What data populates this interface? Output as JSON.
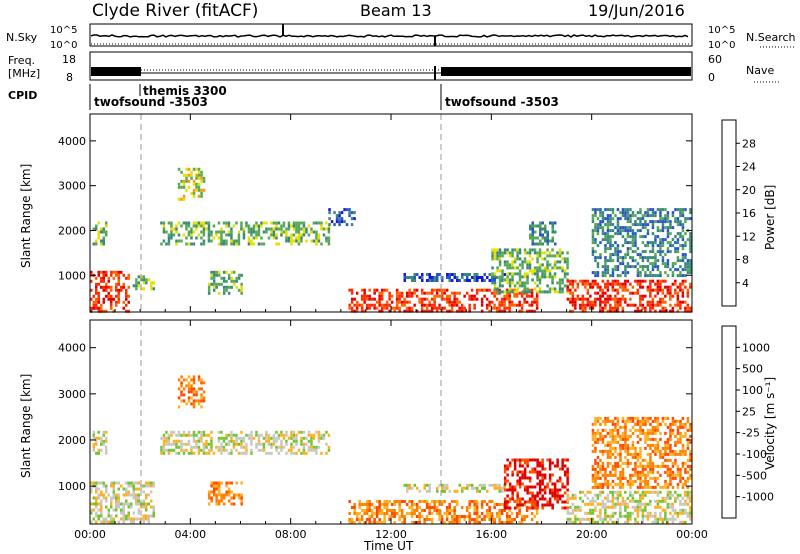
{
  "header": {
    "title": "Clyde River (fitACF)",
    "beam": "Beam 13",
    "date": "19/Jun/2016"
  },
  "top_panels": {
    "nsky_label": "N.Sky",
    "nsearch_label": "N.Search",
    "ns_ticks_left": [
      "10^5",
      "10^0"
    ],
    "ns_ticks_right": [
      "10^5",
      "10^0"
    ],
    "freq_label_1": "Freq.",
    "freq_label_2": "[MHz]",
    "freq_ticks": [
      "18",
      "8"
    ],
    "nave_label": "Nave",
    "nave_ticks": [
      "60",
      "0"
    ],
    "cpid_label": "CPID",
    "cpid_segments": [
      {
        "name": "twofsound -3503",
        "start_h": 0.0,
        "end_h": 2.0
      },
      {
        "name": "themis 3300",
        "start_h": 2.0,
        "end_h": 14.0
      },
      {
        "name": "twofsound -3503",
        "start_h": 14.0,
        "end_h": 24.0
      }
    ]
  },
  "colors": {
    "power_scale": [
      "#1616e0",
      "#2b55c8",
      "#3a8a7a",
      "#57a857",
      "#e6e000",
      "#ff9900",
      "#ff6200",
      "#ff2a00",
      "#e00000"
    ],
    "velocity_scale": [
      "#2233cc",
      "#2e7a86",
      "#2f9a3a",
      "#73c435",
      "#c8c8c0",
      "#ffb020",
      "#ff8000",
      "#ff4a00",
      "#e00000"
    ],
    "ground_scatter": "#c0c0b8"
  },
  "chart_data": [
    {
      "type": "heatmap",
      "name": "power",
      "ylabel": "Slant Range [km]",
      "xlabel": "",
      "x_ticks": [
        "00:00",
        "04:00",
        "08:00",
        "12:00",
        "16:00",
        "20:00",
        "00:00"
      ],
      "y_ticks": [
        "1000",
        "2000",
        "3000",
        "4000"
      ],
      "xlim": [
        0,
        24
      ],
      "ylim": [
        180,
        4600
      ],
      "colorbar_label": "Power [dB]",
      "colorbar_ticks": [
        "28",
        "24",
        "20",
        "16",
        "12",
        "8",
        "4"
      ],
      "regions": [
        {
          "t0": 0.0,
          "t1": 1.5,
          "r0": 200,
          "r1": 1100,
          "level": 7
        },
        {
          "t0": 0.1,
          "t1": 0.6,
          "r0": 1700,
          "r1": 2200,
          "level": 3
        },
        {
          "t0": 1.7,
          "t1": 2.5,
          "r0": 700,
          "r1": 1000,
          "level": 3
        },
        {
          "t0": 2.8,
          "t1": 9.5,
          "r0": 1700,
          "r1": 2200,
          "level": 3
        },
        {
          "t0": 3.5,
          "t1": 4.5,
          "r0": 2700,
          "r1": 3400,
          "level": 4
        },
        {
          "t0": 4.7,
          "t1": 6.0,
          "r0": 600,
          "r1": 1100,
          "level": 3
        },
        {
          "t0": 9.5,
          "t1": 10.5,
          "r0": 2100,
          "r1": 2500,
          "level": 1
        },
        {
          "t0": 10.3,
          "t1": 17.8,
          "r0": 200,
          "r1": 700,
          "level": 7
        },
        {
          "t0": 12.5,
          "t1": 16.5,
          "r0": 900,
          "r1": 1050,
          "level": 1
        },
        {
          "t0": 16.0,
          "t1": 19.0,
          "r0": 600,
          "r1": 1600,
          "level": 3
        },
        {
          "t0": 17.5,
          "t1": 18.5,
          "r0": 1700,
          "r1": 2200,
          "level": 2
        },
        {
          "t0": 19.0,
          "t1": 23.9,
          "r0": 200,
          "r1": 900,
          "level": 7
        },
        {
          "t0": 20.0,
          "t1": 23.9,
          "r0": 1000,
          "r1": 2500,
          "level": 2
        }
      ]
    },
    {
      "type": "heatmap",
      "name": "velocity",
      "ylabel": "Slant Range [km]",
      "xlabel": "Time UT",
      "x_ticks": [
        "00:00",
        "04:00",
        "08:00",
        "12:00",
        "16:00",
        "20:00",
        "00:00"
      ],
      "y_ticks": [
        "1000",
        "2000",
        "3000",
        "4000"
      ],
      "xlim": [
        0,
        24
      ],
      "ylim": [
        180,
        4600
      ],
      "colorbar_label": "Velocity [m s⁻¹]",
      "colorbar_ticks": [
        "1000",
        "500",
        "100",
        "25",
        "-25",
        "-100",
        "-500",
        "-1000"
      ],
      "regions": [
        {
          "t0": 0.0,
          "t1": 2.5,
          "r0": 200,
          "r1": 1100,
          "level": 4
        },
        {
          "t0": 0.1,
          "t1": 0.6,
          "r0": 1700,
          "r1": 2200,
          "level": 4
        },
        {
          "t0": 2.8,
          "t1": 9.5,
          "r0": 1700,
          "r1": 2200,
          "level": 4
        },
        {
          "t0": 3.5,
          "t1": 4.5,
          "r0": 2700,
          "r1": 3400,
          "level": 6
        },
        {
          "t0": 4.7,
          "t1": 6.0,
          "r0": 600,
          "r1": 1100,
          "level": 6
        },
        {
          "t0": 10.3,
          "t1": 17.8,
          "r0": 200,
          "r1": 700,
          "level": 6
        },
        {
          "t0": 12.5,
          "t1": 16.5,
          "r0": 900,
          "r1": 1050,
          "level": 4
        },
        {
          "t0": 16.5,
          "t1": 19.0,
          "r0": 500,
          "r1": 1600,
          "level": 8
        },
        {
          "t0": 19.0,
          "t1": 23.9,
          "r0": 200,
          "r1": 900,
          "level": 4
        },
        {
          "t0": 20.0,
          "t1": 23.9,
          "r0": 1000,
          "r1": 2500,
          "level": 6
        }
      ]
    }
  ]
}
